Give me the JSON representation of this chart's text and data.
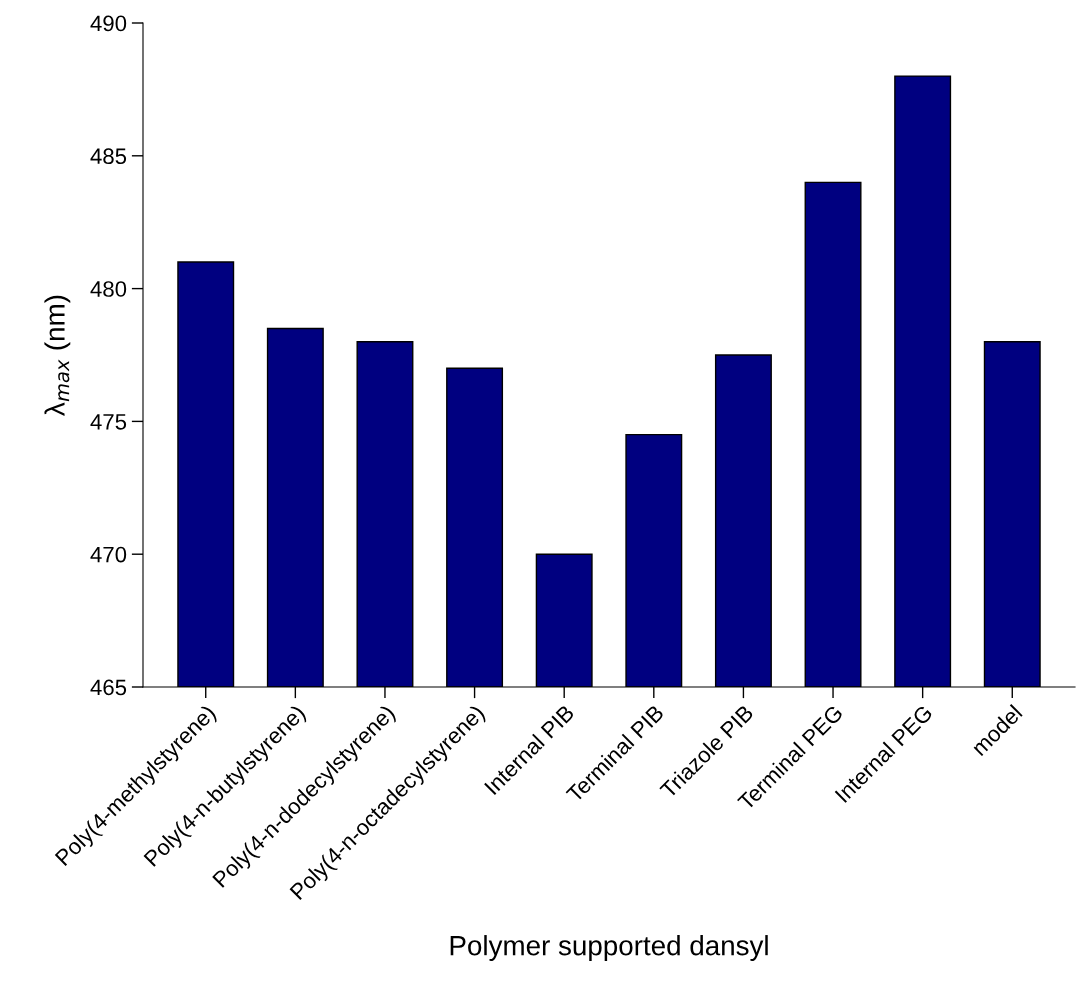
{
  "chart_data": {
    "type": "bar",
    "xlabel": "Polymer supported dansyl",
    "ylabel": "λ$_{max}$ (nm)",
    "categories": [
      "Poly(4-methylstyrene)",
      "Poly(4-n-butylstyrene)",
      "Poly(4-n-dodecylstyrene)",
      "Poly(4-n-octadecylstyrene)",
      "Internal PIB",
      "Terminal PIB",
      "Triazole PIB",
      "Terminal PEG",
      "Internal PEG",
      "model"
    ],
    "values": [
      481,
      478.5,
      478,
      477,
      470,
      474.5,
      477.5,
      484,
      488,
      478
    ],
    "color": "#000080",
    "ylim": [
      465,
      490
    ],
    "yticks": [
      465,
      470,
      475,
      480,
      485,
      490
    ],
    "grid": false
  }
}
